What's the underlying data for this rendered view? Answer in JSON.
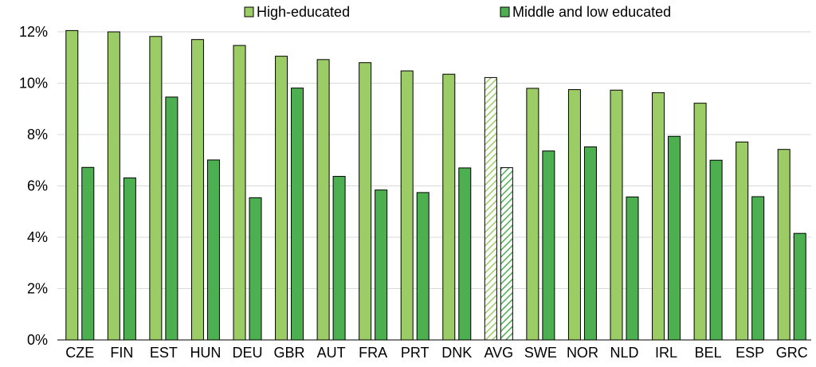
{
  "chart_data": {
    "type": "bar",
    "title": "",
    "xlabel": "",
    "ylabel": "",
    "ylim": [
      0,
      0.12
    ],
    "yticks": [
      "0%",
      "2%",
      "4%",
      "6%",
      "8%",
      "10%",
      "12%"
    ],
    "ytick_values": [
      0,
      0.02,
      0.04,
      0.06,
      0.08,
      0.1,
      0.12
    ],
    "grid": true,
    "legend_position": "top",
    "categories": [
      "CZE",
      "FIN",
      "EST",
      "HUN",
      "DEU",
      "GBR",
      "AUT",
      "FRA",
      "PRT",
      "DNK",
      "AVG",
      "SWE",
      "NOR",
      "NLD",
      "IRL",
      "BEL",
      "ESP",
      "GRC"
    ],
    "highlight_category": "AVG",
    "series": [
      {
        "name": "High-educated",
        "color": "#9ccc65",
        "values": [
          0.1205,
          0.12,
          0.1182,
          0.117,
          0.1147,
          0.1105,
          0.1092,
          0.108,
          0.1048,
          0.1035,
          0.1022,
          0.098,
          0.0975,
          0.0973,
          0.0963,
          0.0922,
          0.0771,
          0.0742
        ]
      },
      {
        "name": "Middle and low educated",
        "color": "#4caf50",
        "values": [
          0.0672,
          0.0631,
          0.0946,
          0.0701,
          0.0554,
          0.0981,
          0.0637,
          0.0584,
          0.0574,
          0.067,
          0.0671,
          0.0736,
          0.0752,
          0.0557,
          0.0793,
          0.07,
          0.0558,
          0.0415
        ]
      }
    ]
  }
}
